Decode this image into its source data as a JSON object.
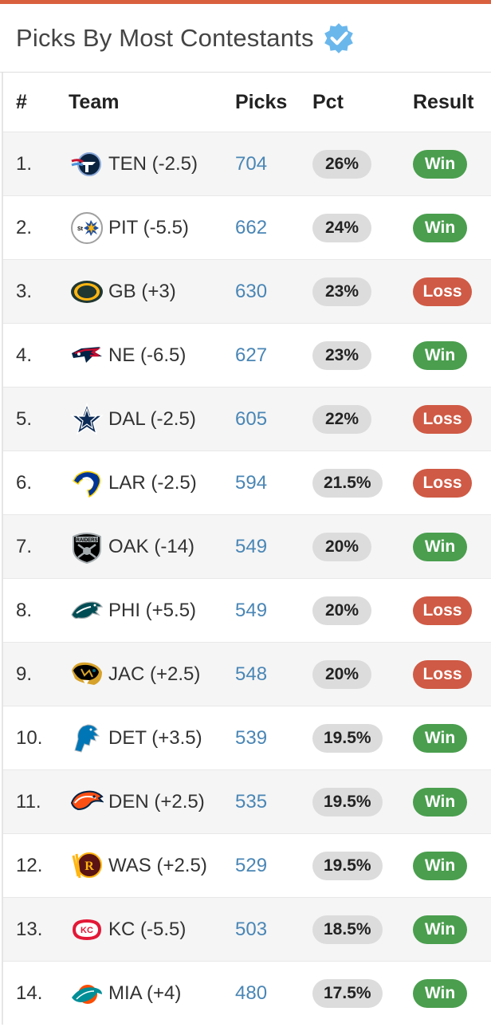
{
  "header": {
    "title": "Picks By Most Contestants",
    "accent_color": "#d9603f",
    "verified_icon": "verified-check-icon"
  },
  "columns": {
    "rank": "#",
    "team": "Team",
    "picks": "Picks",
    "pct": "Pct",
    "result": "Result"
  },
  "colors": {
    "win": "#4a9e4e",
    "loss": "#cf5a45",
    "picks_link": "#4a86b5",
    "pct_badge": "#dcdcdc"
  },
  "rows": [
    {
      "rank": "1.",
      "team": "TEN (-2.5)",
      "picks": "704",
      "pct": "26%",
      "result": "Win",
      "logo": "titans-logo"
    },
    {
      "rank": "2.",
      "team": "PIT (-5.5)",
      "picks": "662",
      "pct": "24%",
      "result": "Win",
      "logo": "steelers-logo"
    },
    {
      "rank": "3.",
      "team": "GB (+3)",
      "picks": "630",
      "pct": "23%",
      "result": "Loss",
      "logo": "packers-logo"
    },
    {
      "rank": "4.",
      "team": "NE (-6.5)",
      "picks": "627",
      "pct": "23%",
      "result": "Win",
      "logo": "patriots-logo"
    },
    {
      "rank": "5.",
      "team": "DAL (-2.5)",
      "picks": "605",
      "pct": "22%",
      "result": "Loss",
      "logo": "cowboys-logo"
    },
    {
      "rank": "6.",
      "team": "LAR (-2.5)",
      "picks": "594",
      "pct": "21.5%",
      "result": "Loss",
      "logo": "rams-logo"
    },
    {
      "rank": "7.",
      "team": "OAK (-14)",
      "picks": "549",
      "pct": "20%",
      "result": "Win",
      "logo": "raiders-logo",
      "logo_text": "RAIDERS"
    },
    {
      "rank": "8.",
      "team": "PHI (+5.5)",
      "picks": "549",
      "pct": "20%",
      "result": "Loss",
      "logo": "eagles-logo"
    },
    {
      "rank": "9.",
      "team": "JAC (+2.5)",
      "picks": "548",
      "pct": "20%",
      "result": "Loss",
      "logo": "jaguars-logo"
    },
    {
      "rank": "10.",
      "team": "DET (+3.5)",
      "picks": "539",
      "pct": "19.5%",
      "result": "Win",
      "logo": "lions-logo"
    },
    {
      "rank": "11.",
      "team": "DEN (+2.5)",
      "picks": "535",
      "pct": "19.5%",
      "result": "Win",
      "logo": "broncos-logo"
    },
    {
      "rank": "12.",
      "team": "WAS (+2.5)",
      "picks": "529",
      "pct": "19.5%",
      "result": "Win",
      "logo": "redskins-logo",
      "logo_text": "R"
    },
    {
      "rank": "13.",
      "team": "KC (-5.5)",
      "picks": "503",
      "pct": "18.5%",
      "result": "Win",
      "logo": "chiefs-logo",
      "logo_text": "KC"
    },
    {
      "rank": "14.",
      "team": "MIA (+4)",
      "picks": "480",
      "pct": "17.5%",
      "result": "Win",
      "logo": "dolphins-logo"
    }
  ]
}
